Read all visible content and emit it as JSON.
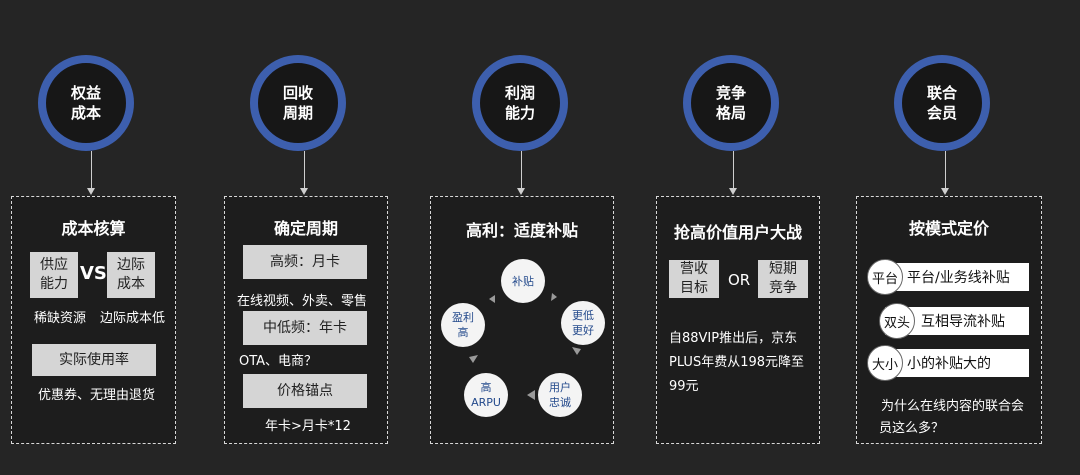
{
  "columns": [
    {
      "circle": "权益\n成本",
      "title": "成本核算",
      "pair": [
        "供应\n能力",
        "边际\n成本"
      ],
      "vs": "VS",
      "pair_notes": [
        "稀缺资源",
        "边际成本低"
      ],
      "bar": "实际使用率",
      "bar_note": "优惠券、无理由退货"
    },
    {
      "circle": "回收\n周期",
      "title": "确定周期",
      "items": [
        {
          "label": "高频：月卡",
          "note": "在线视频、外卖、零售"
        },
        {
          "label": "中低频：年卡",
          "note": "OTA、电商？"
        },
        {
          "label": "价格锚点",
          "note": "年卡>月卡*12"
        }
      ]
    },
    {
      "circle": "利润\n能力",
      "title": "高利：适度补贴",
      "cycle": [
        "补贴",
        "更低\n更好",
        "用户\n忠诚",
        "高\nARPU",
        "盈利\n高"
      ]
    },
    {
      "circle": "竞争\n格局",
      "title": "抢高价值用户大战",
      "pair": [
        "营收\n目标",
        "短期\n竞争"
      ],
      "or": "OR",
      "paragraph": [
        "自88VIP推出后，京东",
        "PLUS年费从198元降至",
        "99元"
      ]
    },
    {
      "circle": "联合\n会员",
      "title": "按模式定价",
      "rows": [
        {
          "tag": "平台",
          "text": "平台/业务线补贴"
        },
        {
          "tag": "双头",
          "text": "互相导流补贴"
        },
        {
          "tag": "大小",
          "text": "小的补贴大的"
        }
      ],
      "question": [
        "为什么在线内容的联合会",
        "员这么多？"
      ]
    }
  ]
}
